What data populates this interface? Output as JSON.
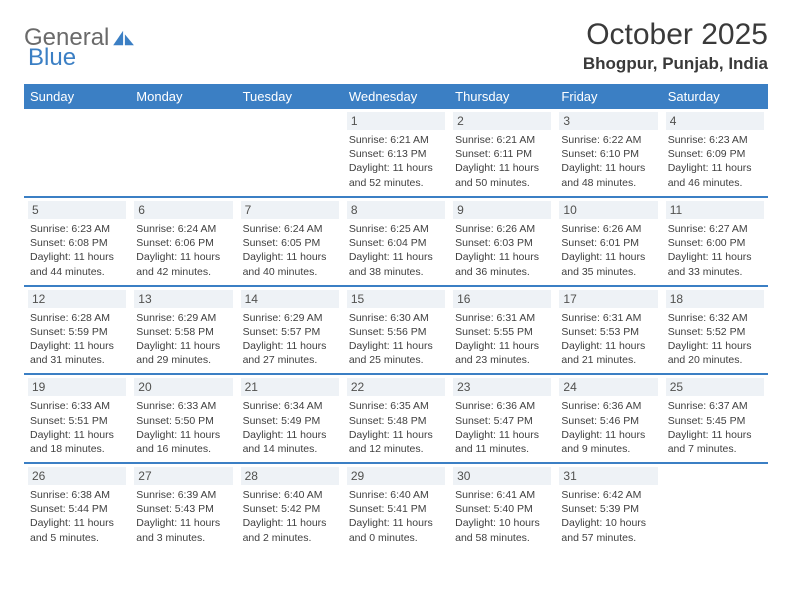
{
  "logo": {
    "text1": "General",
    "text2": "Blue"
  },
  "title": "October 2025",
  "location": "Bhogpur, Punjab, India",
  "colors": {
    "headerBar": "#3b7fc4",
    "headerText": "#ffffff",
    "dayNumBg": "#eef2f6",
    "borderWeek": "#3b7fc4",
    "bodyText": "#404040"
  },
  "dayNames": [
    "Sunday",
    "Monday",
    "Tuesday",
    "Wednesday",
    "Thursday",
    "Friday",
    "Saturday"
  ],
  "weeks": [
    [
      null,
      null,
      null,
      {
        "n": "1",
        "sr": "6:21 AM",
        "ss": "6:13 PM",
        "dl": "11 hours and 52 minutes."
      },
      {
        "n": "2",
        "sr": "6:21 AM",
        "ss": "6:11 PM",
        "dl": "11 hours and 50 minutes."
      },
      {
        "n": "3",
        "sr": "6:22 AM",
        "ss": "6:10 PM",
        "dl": "11 hours and 48 minutes."
      },
      {
        "n": "4",
        "sr": "6:23 AM",
        "ss": "6:09 PM",
        "dl": "11 hours and 46 minutes."
      }
    ],
    [
      {
        "n": "5",
        "sr": "6:23 AM",
        "ss": "6:08 PM",
        "dl": "11 hours and 44 minutes."
      },
      {
        "n": "6",
        "sr": "6:24 AM",
        "ss": "6:06 PM",
        "dl": "11 hours and 42 minutes."
      },
      {
        "n": "7",
        "sr": "6:24 AM",
        "ss": "6:05 PM",
        "dl": "11 hours and 40 minutes."
      },
      {
        "n": "8",
        "sr": "6:25 AM",
        "ss": "6:04 PM",
        "dl": "11 hours and 38 minutes."
      },
      {
        "n": "9",
        "sr": "6:26 AM",
        "ss": "6:03 PM",
        "dl": "11 hours and 36 minutes."
      },
      {
        "n": "10",
        "sr": "6:26 AM",
        "ss": "6:01 PM",
        "dl": "11 hours and 35 minutes."
      },
      {
        "n": "11",
        "sr": "6:27 AM",
        "ss": "6:00 PM",
        "dl": "11 hours and 33 minutes."
      }
    ],
    [
      {
        "n": "12",
        "sr": "6:28 AM",
        "ss": "5:59 PM",
        "dl": "11 hours and 31 minutes."
      },
      {
        "n": "13",
        "sr": "6:29 AM",
        "ss": "5:58 PM",
        "dl": "11 hours and 29 minutes."
      },
      {
        "n": "14",
        "sr": "6:29 AM",
        "ss": "5:57 PM",
        "dl": "11 hours and 27 minutes."
      },
      {
        "n": "15",
        "sr": "6:30 AM",
        "ss": "5:56 PM",
        "dl": "11 hours and 25 minutes."
      },
      {
        "n": "16",
        "sr": "6:31 AM",
        "ss": "5:55 PM",
        "dl": "11 hours and 23 minutes."
      },
      {
        "n": "17",
        "sr": "6:31 AM",
        "ss": "5:53 PM",
        "dl": "11 hours and 21 minutes."
      },
      {
        "n": "18",
        "sr": "6:32 AM",
        "ss": "5:52 PM",
        "dl": "11 hours and 20 minutes."
      }
    ],
    [
      {
        "n": "19",
        "sr": "6:33 AM",
        "ss": "5:51 PM",
        "dl": "11 hours and 18 minutes."
      },
      {
        "n": "20",
        "sr": "6:33 AM",
        "ss": "5:50 PM",
        "dl": "11 hours and 16 minutes."
      },
      {
        "n": "21",
        "sr": "6:34 AM",
        "ss": "5:49 PM",
        "dl": "11 hours and 14 minutes."
      },
      {
        "n": "22",
        "sr": "6:35 AM",
        "ss": "5:48 PM",
        "dl": "11 hours and 12 minutes."
      },
      {
        "n": "23",
        "sr": "6:36 AM",
        "ss": "5:47 PM",
        "dl": "11 hours and 11 minutes."
      },
      {
        "n": "24",
        "sr": "6:36 AM",
        "ss": "5:46 PM",
        "dl": "11 hours and 9 minutes."
      },
      {
        "n": "25",
        "sr": "6:37 AM",
        "ss": "5:45 PM",
        "dl": "11 hours and 7 minutes."
      }
    ],
    [
      {
        "n": "26",
        "sr": "6:38 AM",
        "ss": "5:44 PM",
        "dl": "11 hours and 5 minutes."
      },
      {
        "n": "27",
        "sr": "6:39 AM",
        "ss": "5:43 PM",
        "dl": "11 hours and 3 minutes."
      },
      {
        "n": "28",
        "sr": "6:40 AM",
        "ss": "5:42 PM",
        "dl": "11 hours and 2 minutes."
      },
      {
        "n": "29",
        "sr": "6:40 AM",
        "ss": "5:41 PM",
        "dl": "11 hours and 0 minutes."
      },
      {
        "n": "30",
        "sr": "6:41 AM",
        "ss": "5:40 PM",
        "dl": "10 hours and 58 minutes."
      },
      {
        "n": "31",
        "sr": "6:42 AM",
        "ss": "5:39 PM",
        "dl": "10 hours and 57 minutes."
      },
      null
    ]
  ],
  "labels": {
    "sunrise": "Sunrise:",
    "sunset": "Sunset:",
    "daylight": "Daylight:"
  }
}
